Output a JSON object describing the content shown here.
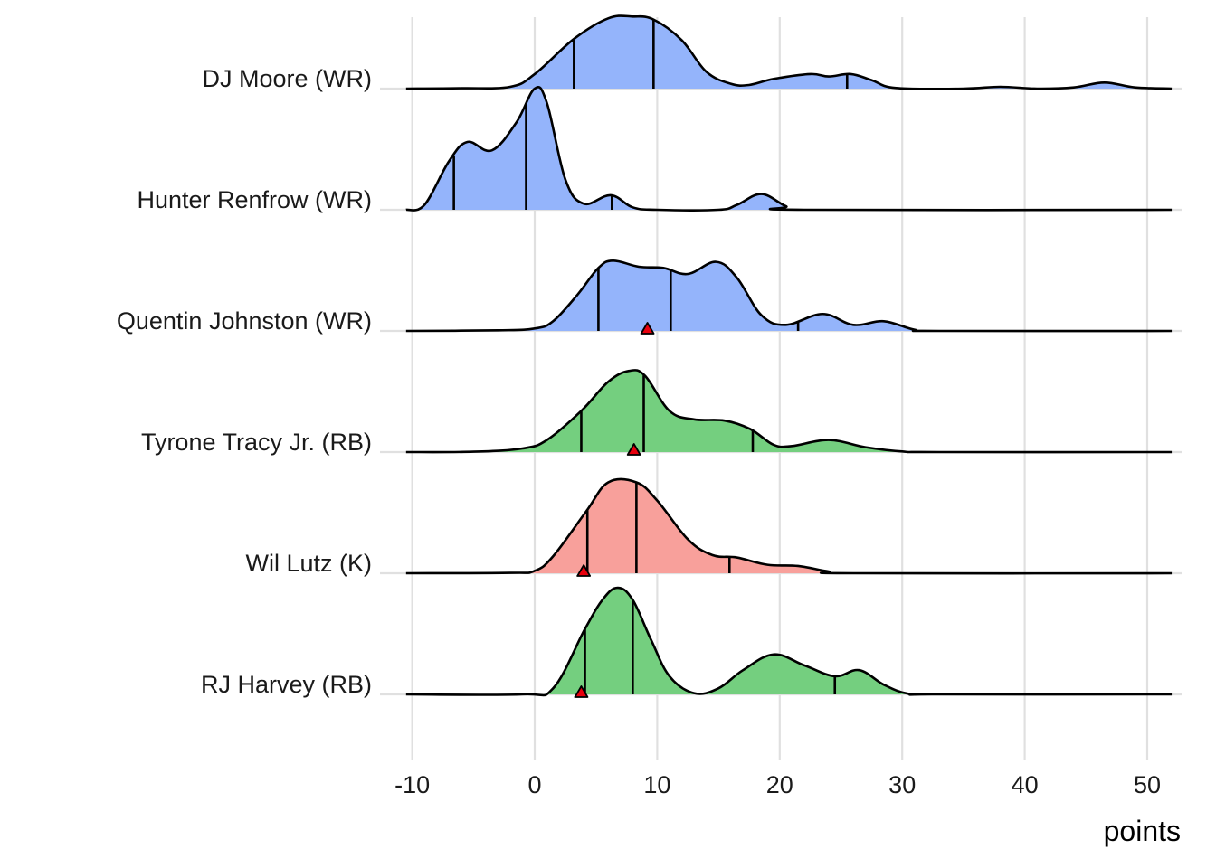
{
  "chart_data": {
    "type": "ridgeline",
    "title": "",
    "xlabel": "points",
    "ylabel": "",
    "xlim": [
      -11.5,
      52.8
    ],
    "x_ticks": [
      -10,
      0,
      10,
      20,
      30,
      40,
      50
    ],
    "x_tick_labels": [
      "-10",
      "0",
      "10",
      "20",
      "30",
      "40",
      "50"
    ],
    "grid": true,
    "position_colors": {
      "WR": "#94b4fb",
      "RB": "#74cf7f",
      "K": "#f8a09b"
    },
    "marker_color": "#e8000d",
    "series": [
      {
        "name": "DJ Moore (WR)",
        "position": "WR",
        "density": [
          [
            -10.5,
            0
          ],
          [
            -6,
            0.003
          ],
          [
            -2,
            0.015
          ],
          [
            0,
            0.12
          ],
          [
            3.2,
            0.41
          ],
          [
            6,
            0.58
          ],
          [
            8,
            0.595
          ],
          [
            9.7,
            0.57
          ],
          [
            12,
            0.4
          ],
          [
            14,
            0.14
          ],
          [
            16,
            0.04
          ],
          [
            17.5,
            0.03
          ],
          [
            19.5,
            0.08
          ],
          [
            22.5,
            0.12
          ],
          [
            24,
            0.1
          ],
          [
            25.8,
            0.12
          ],
          [
            27.5,
            0.07
          ],
          [
            29.5,
            0.005
          ],
          [
            35,
            0
          ],
          [
            38,
            0.015
          ],
          [
            41,
            0
          ],
          [
            44,
            0.01
          ],
          [
            46.5,
            0.05
          ],
          [
            49,
            0.01
          ],
          [
            52,
            0
          ]
        ],
        "quantiles": [
          3.2,
          9.7,
          25.5
        ],
        "marker": null
      },
      {
        "name": "Hunter Renfrow (WR)",
        "position": "WR",
        "density": [
          [
            -10.5,
            0
          ],
          [
            -9,
            0.04
          ],
          [
            -7,
            0.4
          ],
          [
            -5.5,
            0.56
          ],
          [
            -3.5,
            0.49
          ],
          [
            -1.5,
            0.72
          ],
          [
            0,
            1.0
          ],
          [
            1,
            0.88
          ],
          [
            2.5,
            0.25
          ],
          [
            4,
            0.05
          ],
          [
            6.2,
            0.12
          ],
          [
            8,
            0.02
          ],
          [
            10,
            0
          ],
          [
            15,
            0
          ],
          [
            16.5,
            0.04
          ],
          [
            18.5,
            0.13
          ],
          [
            20.5,
            0.03
          ],
          [
            22,
            0
          ],
          [
            52,
            0
          ]
        ],
        "quantiles": [
          -6.6,
          -0.7,
          6.3
        ],
        "marker": null
      },
      {
        "name": "Quentin Johnston (WR)",
        "position": "WR",
        "density": [
          [
            -10.5,
            0
          ],
          [
            -3,
            0.005
          ],
          [
            0,
            0.02
          ],
          [
            1.5,
            0.08
          ],
          [
            3.5,
            0.3
          ],
          [
            5.2,
            0.52
          ],
          [
            6.4,
            0.58
          ],
          [
            8.5,
            0.53
          ],
          [
            10.5,
            0.52
          ],
          [
            12.5,
            0.47
          ],
          [
            14.8,
            0.57
          ],
          [
            16.5,
            0.44
          ],
          [
            18.5,
            0.13
          ],
          [
            20.5,
            0.05
          ],
          [
            23.5,
            0.14
          ],
          [
            26,
            0.05
          ],
          [
            28.5,
            0.08
          ],
          [
            31,
            0.01
          ],
          [
            33,
            0
          ],
          [
            52,
            0
          ]
        ],
        "quantiles": [
          5.2,
          11.1,
          21.5
        ],
        "marker": 9.2
      },
      {
        "name": "Tyrone Tracy Jr. (RB)",
        "position": "RB",
        "density": [
          [
            -10.5,
            0
          ],
          [
            -5,
            0.003
          ],
          [
            -1,
            0.03
          ],
          [
            1,
            0.1
          ],
          [
            3.8,
            0.34
          ],
          [
            6,
            0.58
          ],
          [
            7.7,
            0.67
          ],
          [
            9,
            0.63
          ],
          [
            11,
            0.34
          ],
          [
            13,
            0.27
          ],
          [
            15.5,
            0.26
          ],
          [
            17.6,
            0.19
          ],
          [
            19.5,
            0.06
          ],
          [
            21,
            0.05
          ],
          [
            24,
            0.1
          ],
          [
            27,
            0.04
          ],
          [
            30,
            0.005
          ],
          [
            33,
            0
          ],
          [
            52,
            0
          ]
        ],
        "quantiles": [
          3.8,
          8.9,
          17.8
        ],
        "marker": 8.1
      },
      {
        "name": "Wil Lutz (K)",
        "position": "K",
        "density": [
          [
            -10.5,
            0
          ],
          [
            -2,
            0.003
          ],
          [
            0,
            0.02
          ],
          [
            1.5,
            0.14
          ],
          [
            4.2,
            0.51
          ],
          [
            6,
            0.75
          ],
          [
            8.3,
            0.75
          ],
          [
            10,
            0.6
          ],
          [
            12.5,
            0.28
          ],
          [
            14.5,
            0.15
          ],
          [
            16.5,
            0.13
          ],
          [
            19,
            0.07
          ],
          [
            21.5,
            0.06
          ],
          [
            24,
            0.015
          ],
          [
            26,
            0
          ],
          [
            52,
            0
          ]
        ],
        "quantiles": [
          4.3,
          8.3,
          15.9
        ],
        "marker": 4.0
      },
      {
        "name": "RJ Harvey (RB)",
        "position": "RB",
        "density": [
          [
            -10.5,
            0
          ],
          [
            -1,
            0
          ],
          [
            1.5,
            0.05
          ],
          [
            4.1,
            0.54
          ],
          [
            5.6,
            0.79
          ],
          [
            6.8,
            0.88
          ],
          [
            8,
            0.78
          ],
          [
            9.5,
            0.45
          ],
          [
            11,
            0.15
          ],
          [
            13,
            0.01
          ],
          [
            15,
            0.05
          ],
          [
            17,
            0.2
          ],
          [
            19.5,
            0.33
          ],
          [
            22,
            0.24
          ],
          [
            24.5,
            0.15
          ],
          [
            26.5,
            0.2
          ],
          [
            28.5,
            0.08
          ],
          [
            30.5,
            0.005
          ],
          [
            33,
            0
          ],
          [
            52,
            0
          ]
        ],
        "quantiles": [
          4.1,
          8.0,
          24.5
        ],
        "marker": 3.8
      }
    ]
  }
}
